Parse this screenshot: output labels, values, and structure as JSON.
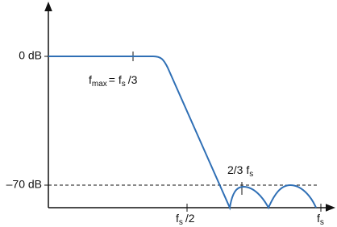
{
  "y_labels": {
    "top": "0 dB",
    "bottom": "–70 dB"
  },
  "annotations": {
    "fmax": [
      "f",
      "max",
      "= f",
      "s",
      "/3"
    ],
    "half": [
      "f",
      "s",
      "/2"
    ],
    "two_thirds": [
      "2/3 f",
      "s"
    ],
    "fs": [
      "f",
      "s"
    ]
  }
}
